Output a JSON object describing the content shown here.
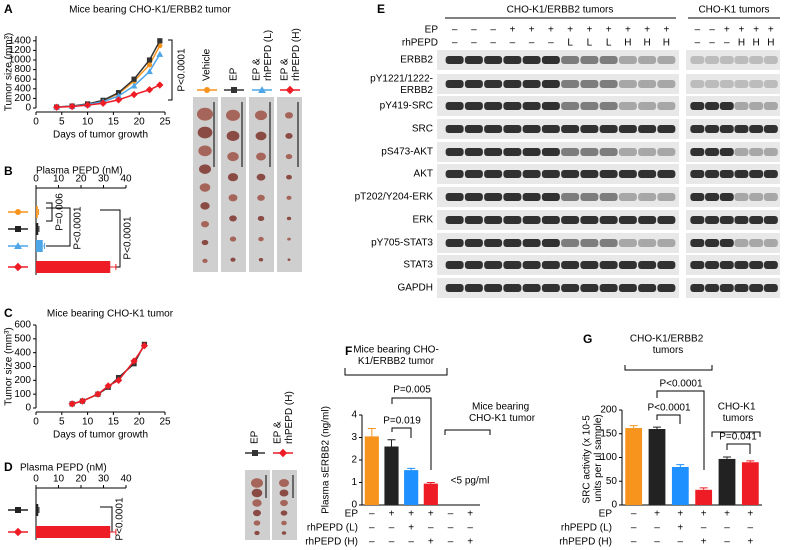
{
  "panels": [
    "A",
    "B",
    "C",
    "D",
    "E",
    "F",
    "G"
  ],
  "chart_data": [
    {
      "type": "line",
      "title": "Mice bearing CHO-K1/ERBB2 tumor",
      "x_label": "Days of tumor growth",
      "y_label": "Tumor size (mm³)",
      "x": [
        4,
        7,
        10,
        13,
        16,
        19,
        22,
        24
      ],
      "xlim": [
        0,
        25
      ],
      "xticks": [
        0,
        5,
        10,
        15,
        20,
        25
      ],
      "ylim": [
        0,
        1500
      ],
      "yticks": [
        0,
        200,
        400,
        600,
        800,
        1000,
        1200,
        1400
      ],
      "series": [
        {
          "name": "Vehicle",
          "color": "#f7941d",
          "marker": "circle",
          "values": [
            20,
            40,
            80,
            150,
            300,
            560,
            900,
            1300
          ]
        },
        {
          "name": "EP",
          "color": "#333333",
          "marker": "square",
          "values": [
            20,
            40,
            85,
            160,
            320,
            600,
            1000,
            1400
          ]
        },
        {
          "name": "EP & rhPEPD (L)",
          "color": "#4da6e8",
          "marker": "triangle",
          "values": [
            20,
            35,
            70,
            130,
            250,
            460,
            760,
            1120
          ]
        },
        {
          "name": "EP & rhPEPD (H)",
          "color": "#ee1c25",
          "marker": "diamond",
          "values": [
            15,
            30,
            60,
            100,
            170,
            280,
            380,
            480
          ]
        }
      ],
      "annotations": [
        "P<0.0001"
      ]
    },
    {
      "type": "hbar",
      "title": "Plasma PEPD (nM)",
      "xlim": [
        0,
        40
      ],
      "xticks": [
        0,
        10,
        20,
        30,
        40
      ],
      "categories": [
        null,
        null,
        null,
        null
      ],
      "values": [
        0.8,
        1,
        3,
        33
      ],
      "errors": [
        0.3,
        0.3,
        0.8,
        2.5
      ],
      "colors": [
        "#f7941d",
        "#222222",
        "#4da6e8",
        "#ee1c25"
      ],
      "markers": [
        "circle",
        "square",
        "triangle",
        "diamond"
      ],
      "annotations": [
        "P=0.006",
        "P<0.0001",
        "P<0.0001"
      ]
    },
    {
      "type": "line",
      "title": "Mice bearing CHO-K1 tumor",
      "x_label": "Days of tumor growth",
      "y_label": "Tumor size (mm³)",
      "x": [
        7,
        9,
        12,
        14,
        16,
        19,
        21
      ],
      "xlim": [
        0,
        25
      ],
      "xticks": [
        0,
        5,
        10,
        15,
        20,
        25
      ],
      "ylim": [
        0,
        600
      ],
      "yticks": [
        0,
        100,
        200,
        300,
        400,
        500,
        600
      ],
      "series": [
        {
          "name": "EP",
          "color": "#333333",
          "marker": "square",
          "values": [
            30,
            50,
            100,
            150,
            220,
            320,
            460
          ]
        },
        {
          "name": "EP & rhPEPD (H)",
          "color": "#ee1c25",
          "marker": "diamond",
          "values": [
            30,
            50,
            100,
            160,
            200,
            340,
            450
          ]
        }
      ]
    },
    {
      "type": "hbar",
      "title": "Plasma PEPD (nM)",
      "xlim": [
        0,
        40
      ],
      "xticks": [
        0,
        10,
        20,
        30,
        40
      ],
      "categories": [
        null,
        null
      ],
      "values": [
        1,
        33
      ],
      "errors": [
        0.3,
        2.5
      ],
      "colors": [
        "#222222",
        "#ee1c25"
      ],
      "markers": [
        "square",
        "diamond"
      ],
      "annotations": [
        "P<0.0001"
      ]
    },
    {
      "type": "bar",
      "y_label": "Plasma sERBB2 (ng/ml)",
      "ylim": [
        0,
        4
      ],
      "yticks": [
        0,
        1,
        2,
        3,
        4
      ],
      "categories": [
        null,
        null,
        null,
        null,
        null,
        null
      ],
      "values": [
        3.05,
        2.6,
        1.55,
        0.95,
        null,
        null
      ],
      "errors": [
        0.35,
        0.3,
        0.08,
        0.05,
        null,
        null
      ],
      "colors": [
        "#f7941d",
        "#222222",
        "#1e90ff",
        "#ee1c25"
      ],
      "conditions": [
        {
          "name": "EP",
          "values": [
            "–",
            "+",
            "+",
            "+",
            "–",
            "+"
          ]
        },
        {
          "name": "rhPEPD (L)",
          "values": [
            "–",
            "–",
            "+",
            "–",
            "–",
            "–"
          ]
        },
        {
          "name": "rhPEPD (H)",
          "values": [
            "–",
            "–",
            "–",
            "+",
            "–",
            "+"
          ]
        }
      ],
      "annotations": [
        "Mice bearing CHO-K1/ERBB2 tumor",
        "P=0.019",
        "P=0.005",
        "Mice bearing CHO-K1 tumor",
        "<5 pg/ml"
      ]
    },
    {
      "type": "bar",
      "y_label": "SRC activity (x 10-5 units per µl sample)",
      "ylim": [
        0,
        200
      ],
      "yticks": [
        0,
        50,
        100,
        150,
        200
      ],
      "categories": [
        null,
        null,
        null,
        null,
        null,
        null
      ],
      "values": [
        162,
        160,
        80,
        32,
        97,
        90
      ],
      "errors": [
        5,
        4,
        5,
        4,
        4,
        3
      ],
      "colors": [
        "#f7941d",
        "#222222",
        "#1e90ff",
        "#ee1c25",
        "#222222",
        "#ee1c25"
      ],
      "conditions": [
        {
          "name": "EP",
          "values": [
            "–",
            "+",
            "+",
            "+",
            "+",
            "+"
          ]
        },
        {
          "name": "rhPEPD (L)",
          "values": [
            "–",
            "–",
            "+",
            "–",
            "–",
            "–"
          ]
        },
        {
          "name": "rhPEPD (H)",
          "values": [
            "–",
            "–",
            "–",
            "+",
            "–",
            "+"
          ]
        }
      ],
      "annotations": [
        "CHO-K1/ERBB2 tumors",
        "P<0.0001",
        "P<0.0001",
        "CHO-K1 tumors",
        "P=0.041"
      ]
    }
  ],
  "blot": {
    "groups": [
      "CHO-K1/ERBB2 tumors",
      "CHO-K1 tumors"
    ],
    "conditions": [
      {
        "name": "EP",
        "lanes": [
          "–",
          "–",
          "–",
          "+",
          "+",
          "+",
          "+",
          "+",
          "+",
          "+",
          "+",
          "+",
          "–",
          "–",
          "+",
          "+",
          "+",
          "+"
        ]
      },
      {
        "name": "rhPEPD",
        "lanes": [
          "–",
          "–",
          "–",
          "–",
          "–",
          "–",
          "L",
          "L",
          "L",
          "H",
          "H",
          "H",
          "–",
          "–",
          "–",
          "H",
          "H",
          "H"
        ]
      }
    ],
    "rows": [
      "ERBB2",
      "pY1221/1222-ERBB2",
      "pY419-SRC",
      "SRC",
      "pS473-AKT",
      "AKT",
      "pT202/Y204-ERK",
      "ERK",
      "pY705-STAT3",
      "STAT3",
      "GAPDH"
    ]
  }
}
